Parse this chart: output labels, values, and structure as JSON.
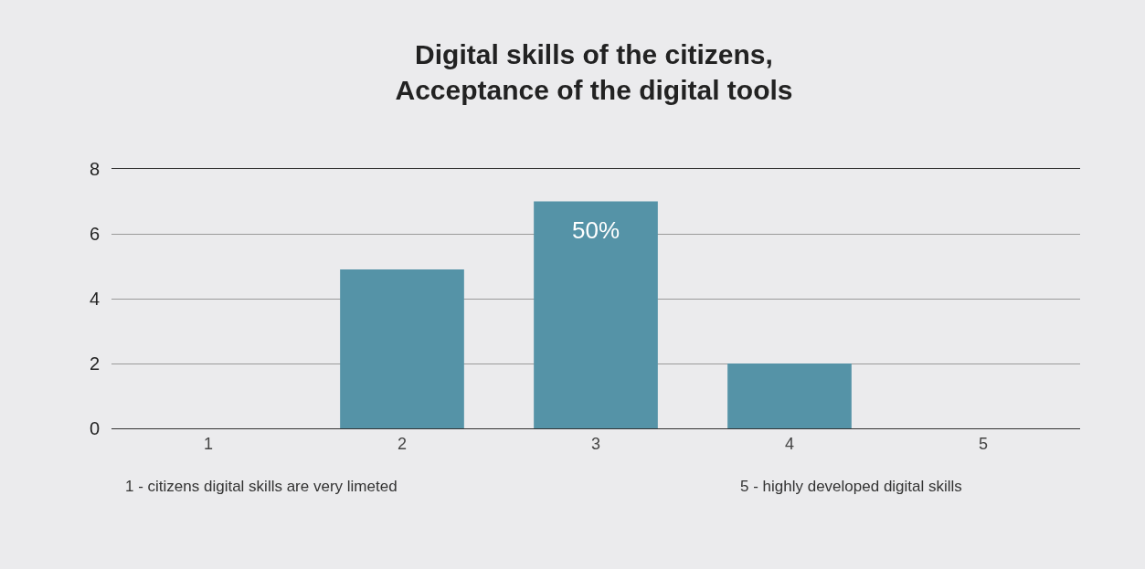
{
  "chart_data": {
    "type": "bar",
    "title": "Digital skills of the citizens,\nAcceptance of the digital tools",
    "categories": [
      "1",
      "2",
      "3",
      "4",
      "5"
    ],
    "values": [
      0,
      4.9,
      7,
      2,
      0
    ],
    "color": "#5593a7",
    "ylim": [
      0,
      8
    ],
    "yticks": [
      0,
      2,
      4,
      6,
      8
    ],
    "grid": "y",
    "annotations": [
      {
        "text": "50%",
        "x": "3",
        "y": 7
      },
      "1 - citizens digital skills are very limeted",
      "5 - highly developed digital skills"
    ]
  }
}
